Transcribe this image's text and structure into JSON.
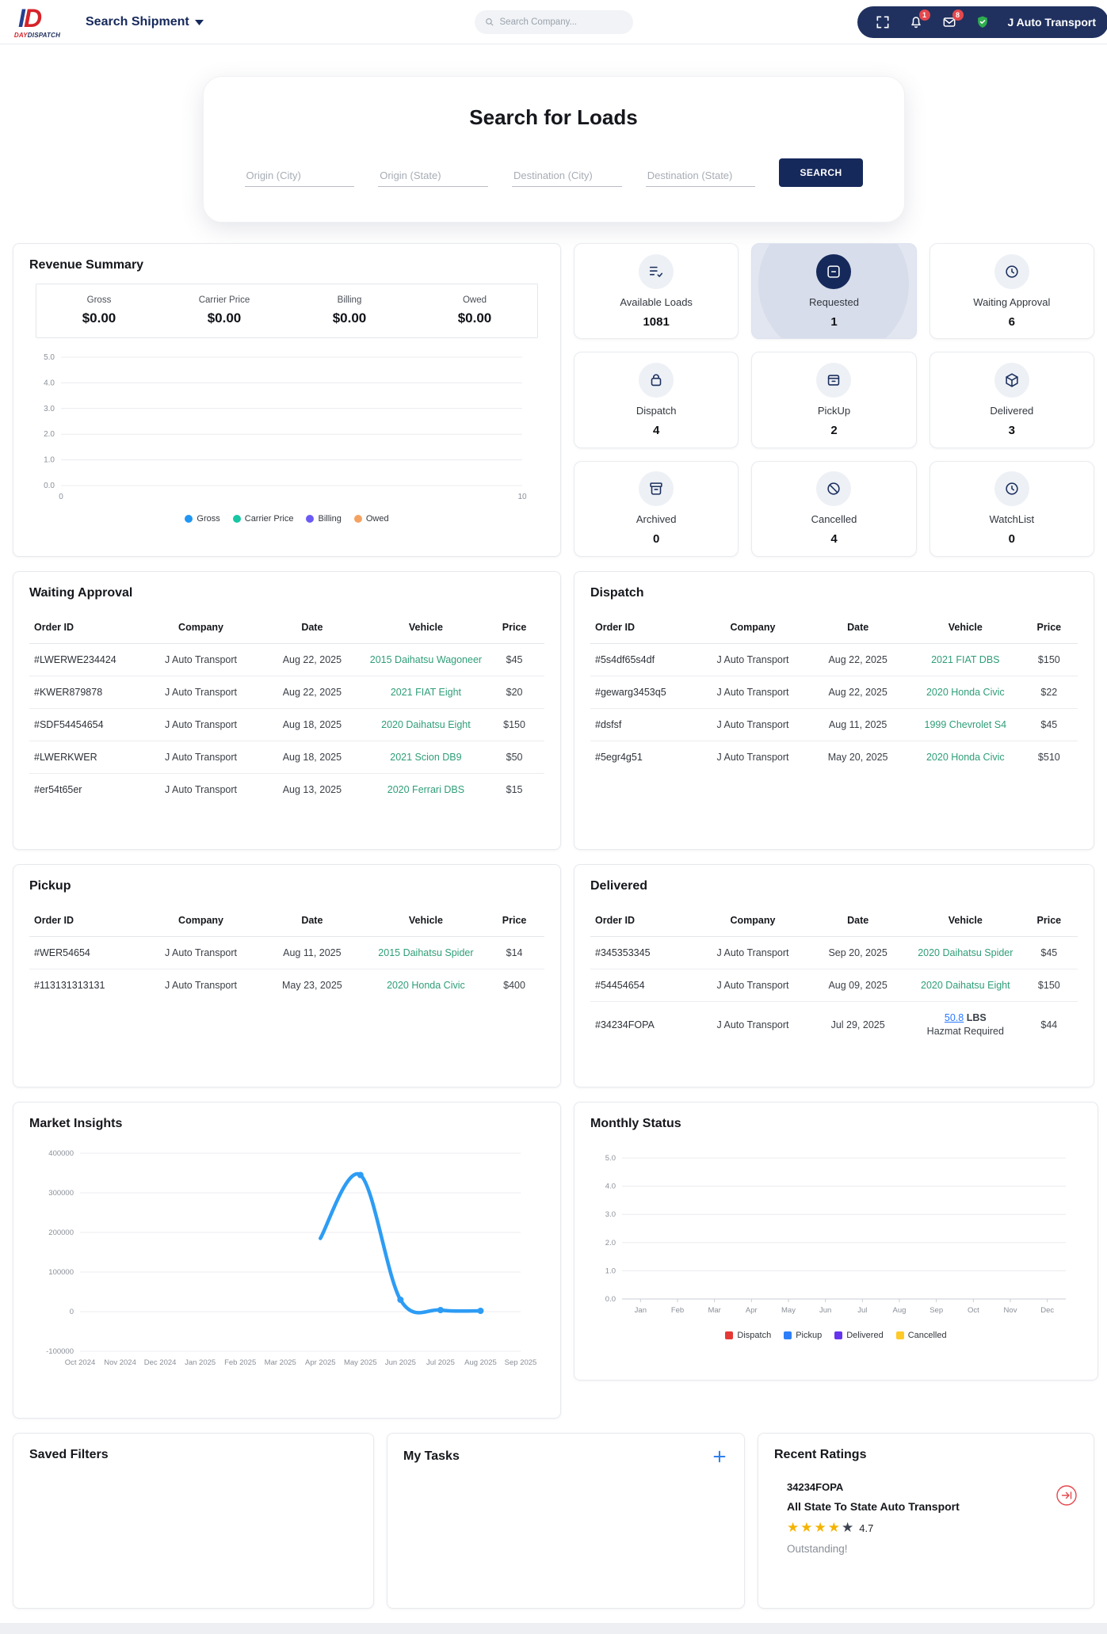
{
  "header": {
    "brand_day": "DAY",
    "brand_dispatch": "DISPATCH",
    "nav_search_shipment": "Search Shipment",
    "search_placeholder": "Search Company...",
    "notif_badge": "1",
    "mail_badge": "8",
    "account_name": "J Auto Transport"
  },
  "search_loads": {
    "title": "Search for Loads",
    "fields": [
      "Origin (City)",
      "Origin (State)",
      "Destination (City)",
      "Destination (State)"
    ],
    "button": "SEARCH"
  },
  "revenue_summary": {
    "title": "Revenue Summary",
    "stats": [
      {
        "label": "Gross",
        "value": "$0.00"
      },
      {
        "label": "Carrier Price",
        "value": "$0.00"
      },
      {
        "label": "Billing",
        "value": "$0.00"
      },
      {
        "label": "Owed",
        "value": "$0.00"
      }
    ],
    "chart_data": {
      "type": "line",
      "yticks": [
        "5.0",
        "4.0",
        "3.0",
        "2.0",
        "1.0",
        "0.0"
      ],
      "ylim": [
        0,
        5
      ],
      "xticks": [
        "0",
        "10"
      ],
      "xlim": [
        0,
        10
      ],
      "grid": true,
      "legend_position": "bottom",
      "series": [
        {
          "name": "Gross",
          "color": "#2196f3",
          "values": []
        },
        {
          "name": "Carrier Price",
          "color": "#17c6a3",
          "values": []
        },
        {
          "name": "Billing",
          "color": "#6b5bf5",
          "values": []
        },
        {
          "name": "Owed",
          "color": "#f4a261",
          "values": []
        }
      ]
    }
  },
  "tiles": [
    {
      "label": "Available Loads",
      "count": "1081",
      "icon": "list-check-icon",
      "active": false
    },
    {
      "label": "Requested",
      "count": "1",
      "icon": "chat-card-icon",
      "active": true
    },
    {
      "label": "Waiting Approval",
      "count": "6",
      "icon": "clock-icon",
      "active": false
    },
    {
      "label": "Dispatch",
      "count": "4",
      "icon": "bag-icon",
      "active": false
    },
    {
      "label": "PickUp",
      "count": "2",
      "icon": "inbox-icon",
      "active": false
    },
    {
      "label": "Delivered",
      "count": "3",
      "icon": "package-icon",
      "active": false
    },
    {
      "label": "Archived",
      "count": "0",
      "icon": "archive-icon",
      "active": false
    },
    {
      "label": "Cancelled",
      "count": "4",
      "icon": "slash-circle-icon",
      "active": false
    },
    {
      "label": "WatchList",
      "count": "0",
      "icon": "watch-icon",
      "active": false
    }
  ],
  "tables": {
    "columns": [
      "Order ID",
      "Company",
      "Date",
      "Vehicle",
      "Price"
    ],
    "waiting_approval": {
      "title": "Waiting Approval",
      "rows": [
        {
          "order_id": "#LWERWE234424",
          "company": "J Auto Transport",
          "date": "Aug 22, 2025",
          "vehicle": "2015 Daihatsu Wagoneer",
          "price": "$45"
        },
        {
          "order_id": "#KWER879878",
          "company": "J Auto Transport",
          "date": "Aug 22, 2025",
          "vehicle": "2021 FIAT Eight",
          "price": "$20"
        },
        {
          "order_id": "#SDF54454654",
          "company": "J Auto Transport",
          "date": "Aug 18, 2025",
          "vehicle": "2020 Daihatsu Eight",
          "price": "$150"
        },
        {
          "order_id": "#LWERKWER",
          "company": "J Auto Transport",
          "date": "Aug 18, 2025",
          "vehicle": "2021 Scion DB9",
          "price": "$50"
        },
        {
          "order_id": "#er54t65er",
          "company": "J Auto Transport",
          "date": "Aug 13, 2025",
          "vehicle": "2020 Ferrari DBS",
          "price": "$15"
        }
      ]
    },
    "dispatch": {
      "title": "Dispatch",
      "rows": [
        {
          "order_id": "#5s4df65s4df",
          "company": "J Auto Transport",
          "date": "Aug 22, 2025",
          "vehicle": "2021 FIAT DBS",
          "price": "$150"
        },
        {
          "order_id": "#gewarg3453q5",
          "company": "J Auto Transport",
          "date": "Aug 22, 2025",
          "vehicle": "2020 Honda Civic",
          "price": "$22"
        },
        {
          "order_id": "#dsfsf",
          "company": "J Auto Transport",
          "date": "Aug 11, 2025",
          "vehicle": "1999 Chevrolet S4",
          "price": "$45"
        },
        {
          "order_id": "#5egr4g51",
          "company": "J Auto Transport",
          "date": "May 20, 2025",
          "vehicle": "2020 Honda Civic",
          "price": "$510"
        }
      ]
    },
    "pickup": {
      "title": "Pickup",
      "rows": [
        {
          "order_id": "#WER54654",
          "company": "J Auto Transport",
          "date": "Aug 11, 2025",
          "vehicle": "2015 Daihatsu Spider",
          "price": "$14"
        },
        {
          "order_id": "#113131313131",
          "company": "J Auto Transport",
          "date": "May 23, 2025",
          "vehicle": "2020 Honda Civic",
          "price": "$400"
        }
      ]
    },
    "delivered": {
      "title": "Delivered",
      "rows": [
        {
          "order_id": "#345353345",
          "company": "J Auto Transport",
          "date": "Sep 20, 2025",
          "vehicle": "2020 Daihatsu Spider",
          "price": "$45"
        },
        {
          "order_id": "#54454654",
          "company": "J Auto Transport",
          "date": "Aug 09, 2025",
          "vehicle": "2020 Daihatsu Eight",
          "price": "$150"
        },
        {
          "order_id": "#34234FOPA",
          "company": "J Auto Transport",
          "date": "Jul 29, 2025",
          "vehicle_link": "50.8",
          "vehicle_rest": "LBS",
          "vehicle_line2": "Hazmat Required",
          "price": "$44"
        }
      ]
    }
  },
  "market_insights": {
    "title": "Market Insights",
    "chart_data": {
      "type": "line",
      "x": [
        "Oct 2024",
        "Nov 2024",
        "Dec 2024",
        "Jan 2025",
        "Feb 2025",
        "Mar 2025",
        "Apr 2025",
        "May 2025",
        "Jun 2025",
        "Jul 2025",
        "Aug 2025",
        "Sep 2025"
      ],
      "yticks": [
        400000,
        300000,
        200000,
        100000,
        0,
        -100000
      ],
      "ylim": [
        -100000,
        400000
      ],
      "grid": true,
      "series": [
        {
          "name": "Market",
          "color": "#2d9cf4",
          "points": [
            {
              "x": "Apr 2025",
              "y": 185000
            },
            {
              "x": "May 2025",
              "y": 345000
            },
            {
              "x": "Jun 2025",
              "y": 30000
            },
            {
              "x": "Jul 2025",
              "y": 4000
            },
            {
              "x": "Aug 2025",
              "y": 2000
            }
          ]
        }
      ]
    }
  },
  "monthly_status": {
    "title": "Monthly Status",
    "chart_data": {
      "type": "bar",
      "categories": [
        "Jan",
        "Feb",
        "Mar",
        "Apr",
        "May",
        "Jun",
        "Jul",
        "Aug",
        "Sep",
        "Oct",
        "Nov",
        "Dec"
      ],
      "yticks": [
        "5.0",
        "4.0",
        "3.0",
        "2.0",
        "1.0",
        "0.0"
      ],
      "ylim": [
        0,
        5
      ],
      "grid": true,
      "legend_position": "bottom",
      "series": [
        {
          "name": "Dispatch",
          "color": "#e53935",
          "values": []
        },
        {
          "name": "Pickup",
          "color": "#2d7ff9",
          "values": []
        },
        {
          "name": "Delivered",
          "color": "#6633ee",
          "values": []
        },
        {
          "name": "Cancelled",
          "color": "#ffc928",
          "values": []
        }
      ]
    }
  },
  "saved_filters": {
    "title": "Saved Filters"
  },
  "my_tasks": {
    "title": "My Tasks"
  },
  "recent_ratings": {
    "title": "Recent Ratings",
    "order_id": "34234FOPA",
    "company": "All State To State Auto Transport",
    "stars_full": 4,
    "stars_total": 5,
    "rating": "4.7",
    "comment": "Outstanding!"
  }
}
